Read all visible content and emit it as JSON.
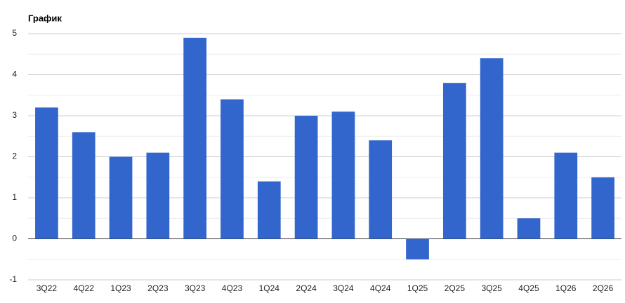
{
  "chart_data": {
    "type": "bar",
    "title": "График",
    "categories": [
      "3Q22",
      "4Q22",
      "1Q23",
      "2Q23",
      "3Q23",
      "4Q23",
      "1Q24",
      "2Q24",
      "3Q24",
      "4Q24",
      "1Q25",
      "2Q25",
      "3Q25",
      "4Q25",
      "1Q26",
      "2Q26"
    ],
    "values": [
      3.2,
      2.6,
      2.0,
      2.1,
      4.9,
      3.4,
      1.4,
      3.0,
      3.1,
      2.4,
      -0.5,
      3.8,
      4.4,
      0.5,
      2.1,
      1.5
    ],
    "color": "#3366cc",
    "ylim": [
      -1,
      5
    ],
    "yticks": [
      -1,
      0,
      1,
      2,
      3,
      4,
      5
    ],
    "grid": true
  }
}
